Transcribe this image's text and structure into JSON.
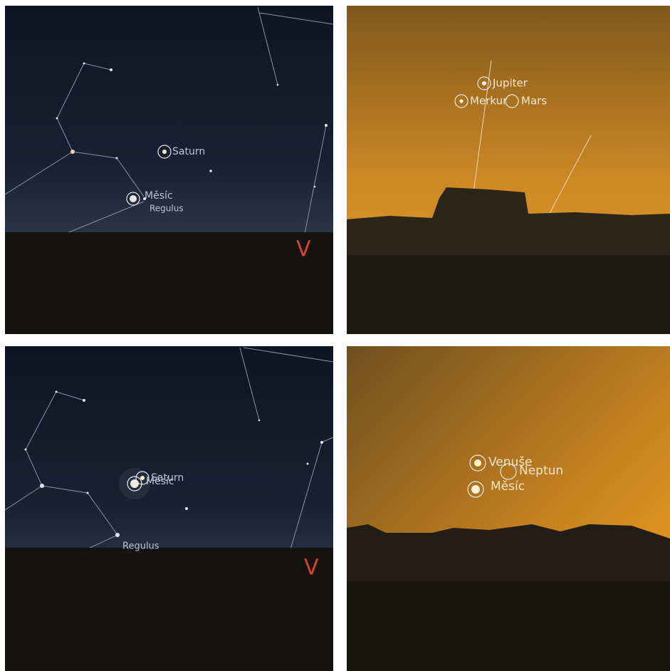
{
  "panels": [
    {
      "labels": [
        "Saturn",
        "Měsíc",
        "Regulus"
      ],
      "compass": "V"
    },
    {
      "labels": [
        "Jupiter",
        "Merkur",
        "Mars"
      ]
    },
    {
      "labels": [
        "Saturn",
        "Měsíc",
        "Regulus"
      ],
      "compass": "V"
    },
    {
      "labels": [
        "Venuše",
        "Neptun",
        "Měsíc"
      ]
    }
  ]
}
